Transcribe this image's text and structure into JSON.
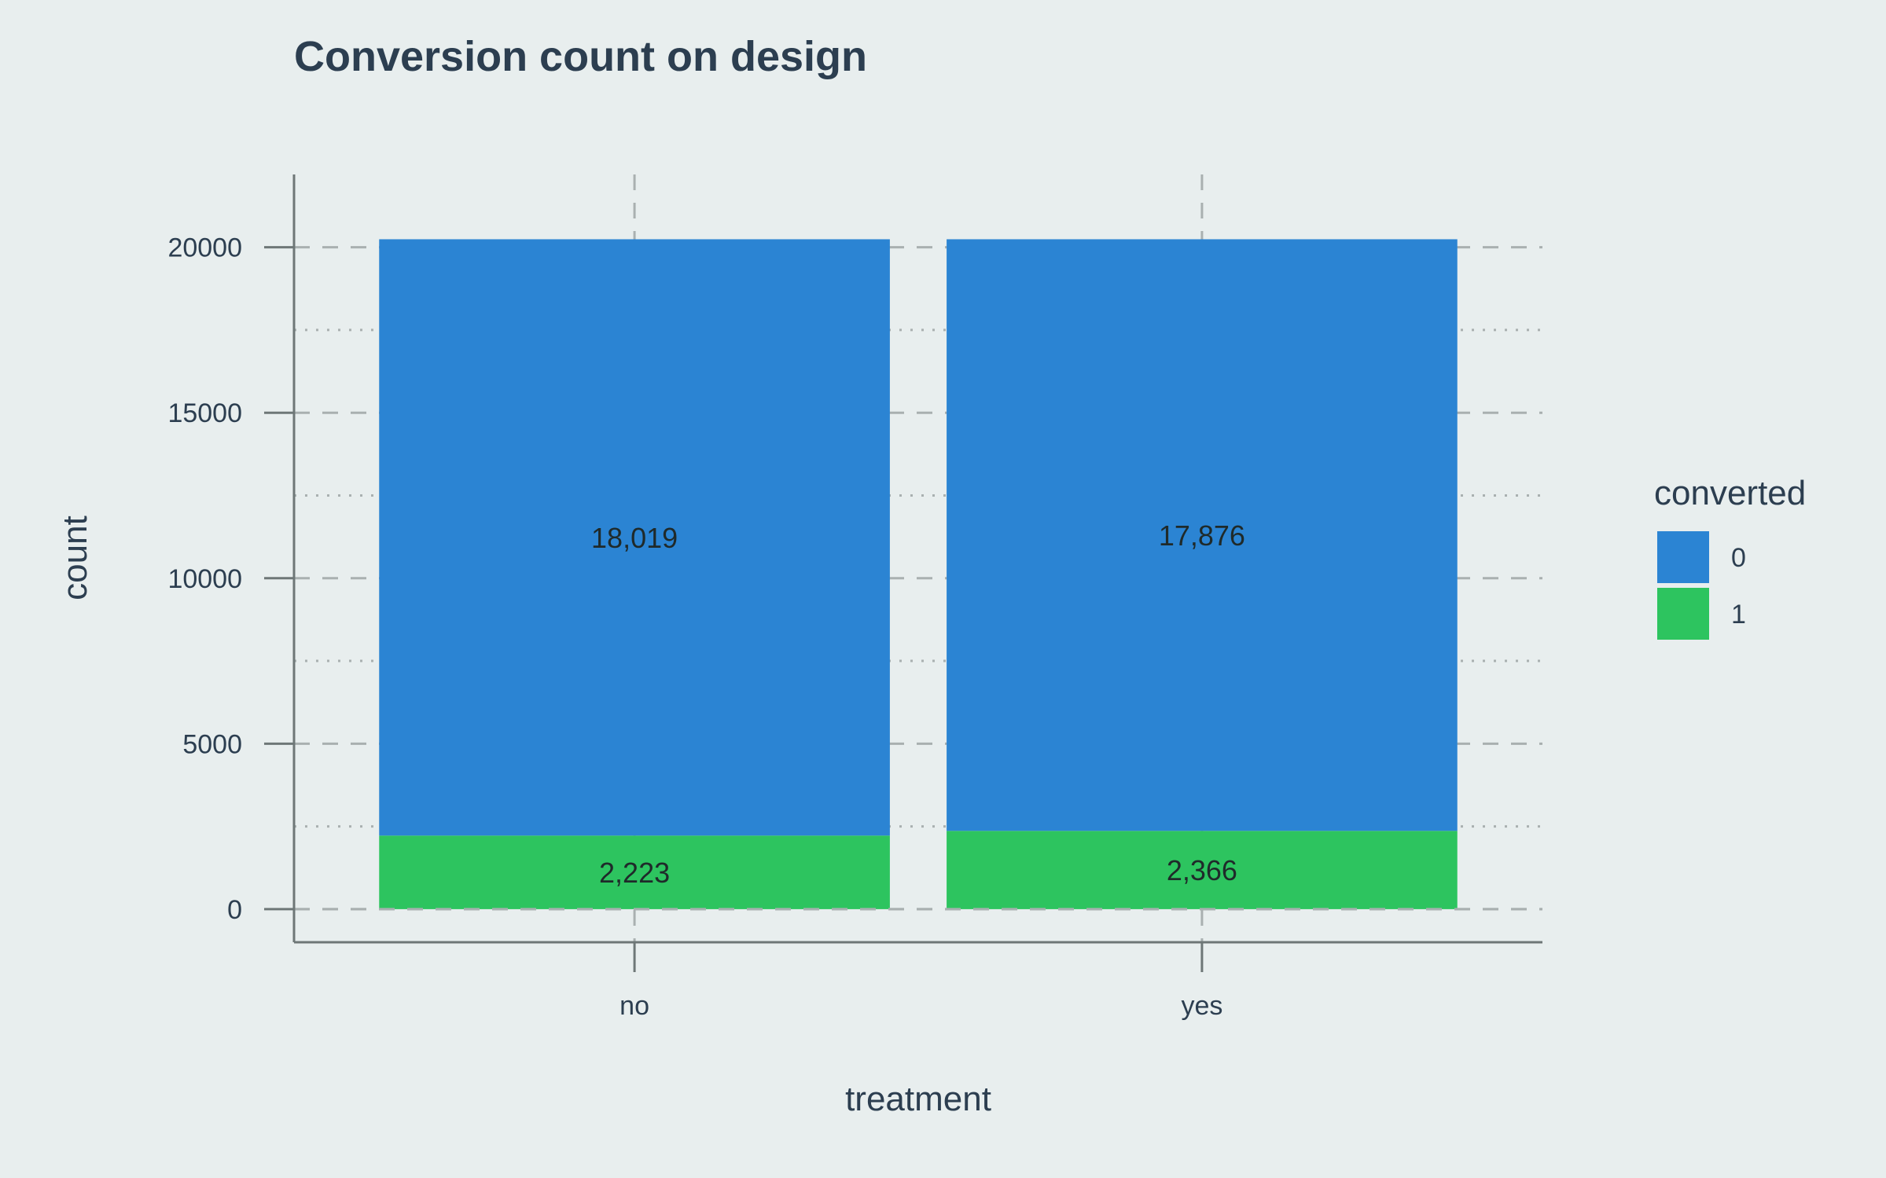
{
  "chart_data": {
    "type": "bar",
    "stacked": true,
    "title": "Conversion count on design",
    "xlabel": "treatment",
    "ylabel": "count",
    "categories": [
      "no",
      "yes"
    ],
    "series": [
      {
        "name": "1",
        "values": [
          2223,
          2366
        ],
        "labels": [
          "2,223",
          "2,366"
        ],
        "color": "#2dc45f"
      },
      {
        "name": "0",
        "values": [
          18019,
          17876
        ],
        "labels": [
          "18,019",
          "17,876"
        ],
        "color": "#2b84d3"
      }
    ],
    "y_ticks": [
      0,
      5000,
      10000,
      15000,
      20000
    ],
    "y_tick_labels": [
      "0",
      "5000",
      "10000",
      "15000",
      "20000"
    ],
    "ylim": [
      -1000,
      22200
    ],
    "grid": true,
    "legend": {
      "title": "converted",
      "placement": "right",
      "entries": [
        {
          "label": "0",
          "color": "#2b84d3"
        },
        {
          "label": "1",
          "color": "#2dc45f"
        }
      ]
    }
  }
}
